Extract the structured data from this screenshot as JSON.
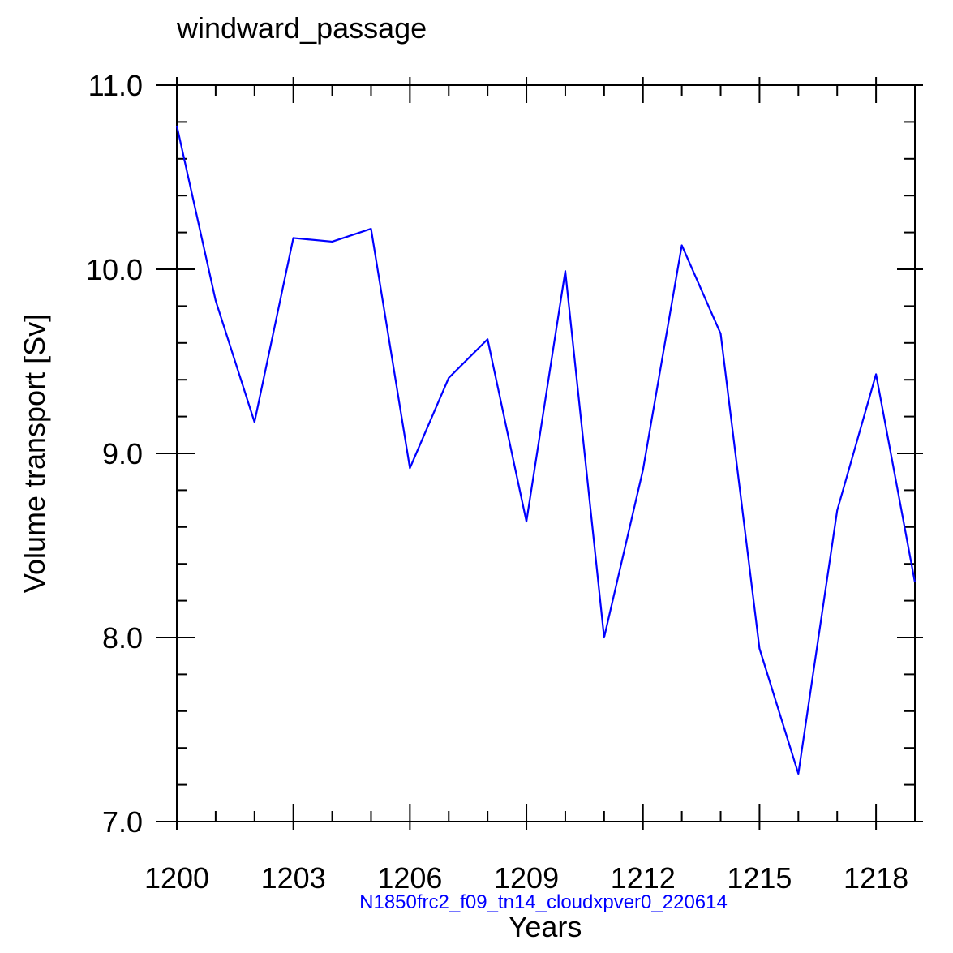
{
  "colors": {
    "line": "#0000ff",
    "caption": "#0000ff",
    "axis": "#000000"
  },
  "chart_data": {
    "type": "line",
    "title": "windward_passage",
    "xlabel": "Years",
    "ylabel": "Volume transport [Sv]",
    "caption": "N1850frc2_f09_tn14_cloudxpver0_220614",
    "xlim": [
      1200,
      1219
    ],
    "ylim": [
      7.0,
      11.0
    ],
    "x_ticks": [
      1200,
      1203,
      1206,
      1209,
      1212,
      1215,
      1218
    ],
    "x_tick_labels": [
      "1200",
      "1203",
      "1206",
      "1209",
      "1212",
      "1215",
      "1218"
    ],
    "y_ticks": [
      7.0,
      8.0,
      9.0,
      10.0,
      11.0
    ],
    "y_tick_labels": [
      "7.0",
      "8.0",
      "9.0",
      "10.0",
      "11.0"
    ],
    "x_minor_step": 1,
    "y_minor_step": 0.2,
    "grid": false,
    "series": [
      {
        "name": "windward_passage",
        "x": [
          1200,
          1201,
          1202,
          1203,
          1204,
          1205,
          1206,
          1207,
          1208,
          1209,
          1210,
          1211,
          1212,
          1213,
          1214,
          1215,
          1216,
          1217,
          1218,
          1219
        ],
        "values": [
          10.78,
          9.83,
          9.17,
          10.17,
          10.15,
          10.22,
          8.92,
          9.41,
          9.62,
          8.63,
          9.99,
          8.0,
          8.91,
          10.13,
          9.65,
          7.94,
          7.26,
          8.69,
          9.43,
          8.3
        ]
      }
    ]
  }
}
